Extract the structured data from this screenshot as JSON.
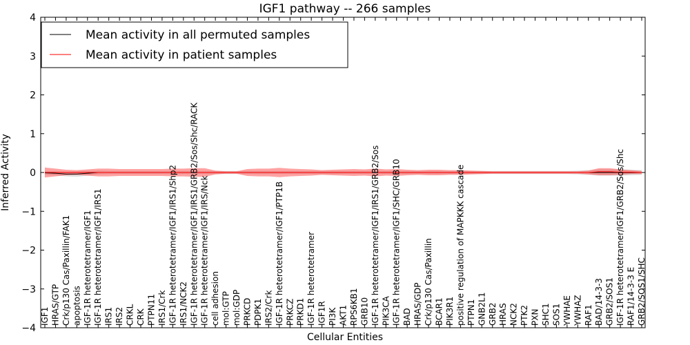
{
  "chart_data": {
    "type": "line",
    "title": "IGF1 pathway -- 266 samples",
    "xlabel": "Cellular Entities",
    "ylabel": "Inferred Activity",
    "ylim": [
      -4,
      4
    ],
    "yticks": [
      4,
      3,
      2,
      1,
      0,
      -1,
      -2,
      -3,
      -4
    ],
    "ytick_labels": [
      "4",
      "3",
      "2",
      "1",
      "0",
      "−1",
      "−2",
      "−3",
      "−4"
    ],
    "categories": [
      "IGF1",
      "HRAS/GTP",
      "Crk/p130 Cas/Paxillin/FAK1",
      "apoptosis",
      "IGF-1R heterotetramer/IGF1",
      "IGF-1R heterotetramer/IGF1/IRS1",
      "IRS1",
      "IRS2",
      "CRKL",
      "CRK",
      "PTPN11",
      "IRS1/Crk",
      "IGF-1R heterotetramer/IGF1/IRS1/Shp2",
      "IRS1/NCK2",
      "IGF-1R heterotetramer/IGF1/IRS1/GRB2/Sos/Shc/RACK",
      "IGF-1R heterotetramer/IGF1/IRS/Nck",
      "cell adhesion",
      "mol:GTP",
      "mol:GDP",
      "PRKCD",
      "PDPK1",
      "IRS2/Crk",
      "IGF-1R heterotetramer/IGF1/PTP1B",
      "PRKCZ",
      "PRKD1",
      "IGF-1R heterotetramer",
      "IGF1R",
      "PI3K",
      "AKT1",
      "RPS6KB1",
      "GRB10",
      "IGF-1R heterotetramer/IGF1/IRS1/GRB2/Sos",
      "PIK3CA",
      "IGF-1R heterotetramer/IGF1/SHC/GRB10",
      "BAD",
      "HRAS/GDP",
      "Crk/p130 Cas/Paxillin",
      "BCAR1",
      "PIK3R1",
      "positive regulation of MAPKKK cascade",
      "PTPN1",
      "GNB2L1",
      "GRB2",
      "HRAS",
      "NCK2",
      "PTK2",
      "PXN",
      "SHC1",
      "SOS1",
      "YWHAE",
      "YWHAZ",
      "RAF1",
      "BAD/14-3-3",
      "GRB2/SOS1",
      "IGF-1R heterotetramer/IGF1/GRB2/Sos/Shc",
      "RAF1/14-3-3 E",
      "GRB2/SOS1/SHC"
    ],
    "series": [
      {
        "name": "Mean activity in all permuted samples",
        "color": "#000000",
        "values": [
          -0.01,
          -0.02,
          -0.04,
          -0.04,
          -0.02,
          0.0,
          0.0,
          0.0,
          0.0,
          0.0,
          0.0,
          0.0,
          0.0,
          0.0,
          0.0,
          0.0,
          0.0,
          0.0,
          0.0,
          0.0,
          0.0,
          0.0,
          0.0,
          0.0,
          0.0,
          0.0,
          0.0,
          0.0,
          0.0,
          0.0,
          0.0,
          0.0,
          0.0,
          0.0,
          0.0,
          0.0,
          0.0,
          0.0,
          0.0,
          0.0,
          0.0,
          0.0,
          0.0,
          0.0,
          0.0,
          0.0,
          0.0,
          0.0,
          0.0,
          0.0,
          0.0,
          0.0,
          0.0,
          0.0,
          0.0,
          0.0,
          0.0
        ],
        "band": [
          0.05,
          0.05,
          0.06,
          0.07,
          0.06,
          0.05,
          0.04,
          0.04,
          0.04,
          0.04,
          0.04,
          0.04,
          0.04,
          0.04,
          0.04,
          0.04,
          0.04,
          0.04,
          0.04,
          0.04,
          0.04,
          0.04,
          0.04,
          0.04,
          0.04,
          0.04,
          0.04,
          0.04,
          0.04,
          0.04,
          0.04,
          0.04,
          0.04,
          0.04,
          0.04,
          0.04,
          0.04,
          0.04,
          0.04,
          0.04,
          0.04,
          0.04,
          0.04,
          0.04,
          0.04,
          0.04,
          0.04,
          0.04,
          0.04,
          0.04,
          0.05,
          0.06,
          0.08,
          0.08,
          0.08,
          0.07,
          0.06
        ]
      },
      {
        "name": "Mean activity in patient samples",
        "color": "#ff0000",
        "values": [
          0.0,
          0.0,
          0.0,
          0.0,
          0.0,
          0.0,
          0.0,
          0.0,
          0.0,
          0.0,
          0.0,
          0.0,
          0.0,
          0.0,
          0.0,
          0.0,
          0.0,
          0.0,
          0.0,
          0.0,
          0.0,
          0.0,
          0.0,
          0.0,
          0.0,
          0.0,
          0.0,
          0.0,
          0.0,
          0.0,
          0.0,
          0.0,
          0.0,
          0.0,
          0.0,
          0.0,
          0.0,
          0.0,
          0.0,
          0.0,
          0.0,
          0.0,
          0.0,
          0.0,
          0.0,
          0.0,
          0.0,
          0.0,
          0.0,
          0.0,
          0.0,
          0.0,
          0.02,
          0.02,
          0.01,
          0.01,
          0.0
        ],
        "band": [
          0.13,
          0.1,
          0.07,
          0.06,
          0.08,
          0.1,
          0.1,
          0.09,
          0.09,
          0.09,
          0.09,
          0.09,
          0.1,
          0.1,
          0.11,
          0.11,
          0.05,
          0.03,
          0.03,
          0.09,
          0.1,
          0.1,
          0.12,
          0.1,
          0.09,
          0.08,
          0.06,
          0.07,
          0.08,
          0.09,
          0.08,
          0.1,
          0.08,
          0.09,
          0.07,
          0.06,
          0.07,
          0.07,
          0.06,
          0.06,
          0.05,
          0.04,
          0.03,
          0.03,
          0.03,
          0.03,
          0.03,
          0.03,
          0.03,
          0.03,
          0.03,
          0.05,
          0.09,
          0.09,
          0.07,
          0.05,
          0.04
        ]
      }
    ],
    "legend_position": "top-left",
    "grid": false
  }
}
